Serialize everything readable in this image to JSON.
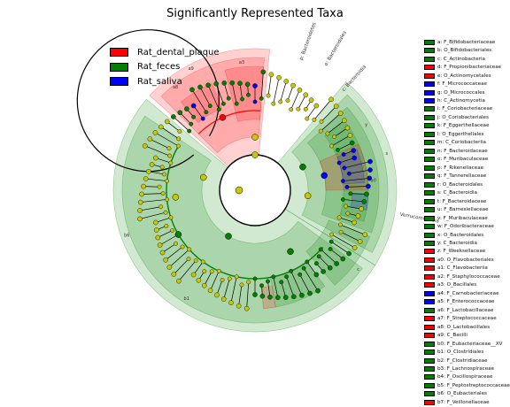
{
  "chart_data": {
    "type": "cladogram",
    "title": "Significantly Represented Taxa",
    "classes": [
      {
        "name": "Rat_dental_plaque",
        "color": "#ff0000"
      },
      {
        "name": "Rat_feces",
        "color": "#008000"
      },
      {
        "name": "Rat_saliva",
        "color": "#0000ff"
      }
    ],
    "sectors": [
      {
        "label": "p: Bacteroidetes",
        "color": "#008000"
      },
      {
        "label": "c: Bacteroidia",
        "color": "#008000"
      },
      {
        "label": "o: Bacteroidales",
        "color": "#008000"
      },
      {
        "label": "Verrucomicrobia",
        "color": "#008000"
      }
    ],
    "taxa": [
      {
        "key": "a",
        "name": "F_Bifidobacteriaceae",
        "color": "#008000"
      },
      {
        "key": "b",
        "name": "O_Bifidobacteriales",
        "color": "#008000"
      },
      {
        "key": "c",
        "name": "C_Actinobacteria",
        "color": "#008000"
      },
      {
        "key": "d",
        "name": "F_Propionibacteriaceae",
        "color": "#ff0000"
      },
      {
        "key": "e",
        "name": "O_Actinomycetales",
        "color": "#ff0000"
      },
      {
        "key": "f",
        "name": "F_Micrococcaceae",
        "color": "#0000ff"
      },
      {
        "key": "g",
        "name": "O_Micrococcales",
        "color": "#0000ff"
      },
      {
        "key": "h",
        "name": "C_Actinomycetia",
        "color": "#0000ff"
      },
      {
        "key": "i",
        "name": "F_Coriobacteriaceae",
        "color": "#008000"
      },
      {
        "key": "j",
        "name": "O_Coriobacteriales",
        "color": "#008000"
      },
      {
        "key": "k",
        "name": "F_Eggerthellaceae",
        "color": "#008000"
      },
      {
        "key": "l",
        "name": "O_Eggerthellales",
        "color": "#008000"
      },
      {
        "key": "m",
        "name": "C_Coriobacteriia",
        "color": "#008000"
      },
      {
        "key": "n",
        "name": "F_Bacteroidaceae",
        "color": "#008000"
      },
      {
        "key": "o",
        "name": "F_Muribaculaceae",
        "color": "#008000"
      },
      {
        "key": "p",
        "name": "F_Rikenellaceae",
        "color": "#008000"
      },
      {
        "key": "q",
        "name": "F_Tannerellaceae",
        "color": "#008000"
      },
      {
        "key": "r",
        "name": "O_Bacteroidales",
        "color": "#008000"
      },
      {
        "key": "s",
        "name": "C_Bacteroidia",
        "color": "#008000"
      },
      {
        "key": "t",
        "name": "F_Bacteroidaceae",
        "color": "#008000"
      },
      {
        "key": "u",
        "name": "F_Barnesiellaceae",
        "color": "#008000"
      },
      {
        "key": "v",
        "name": "F_Muribaculaceae",
        "color": "#008000"
      },
      {
        "key": "w",
        "name": "F_Odoribacteraceae",
        "color": "#008000"
      },
      {
        "key": "x",
        "name": "O_Bacteroidales",
        "color": "#008000"
      },
      {
        "key": "y",
        "name": "C_Bacteroidia",
        "color": "#008000"
      },
      {
        "key": "z",
        "name": "F_Weeksellaceae",
        "color": "#ff0000"
      },
      {
        "key": "a0",
        "name": "O_Flavobacteriales",
        "color": "#ff0000"
      },
      {
        "key": "a1",
        "name": "C_Flavobacteriia",
        "color": "#ff0000"
      },
      {
        "key": "a2",
        "name": "F_Staphylococcaceae",
        "color": "#ff0000"
      },
      {
        "key": "a3",
        "name": "O_Bacillales",
        "color": "#ff0000"
      },
      {
        "key": "a4",
        "name": "F_Carnobacteriaceae",
        "color": "#0000ff"
      },
      {
        "key": "a5",
        "name": "F_Enterococcaceae",
        "color": "#0000ff"
      },
      {
        "key": "a6",
        "name": "F_Lactobacillaceae",
        "color": "#008000"
      },
      {
        "key": "a7",
        "name": "F_Streptococcaceae",
        "color": "#ff0000"
      },
      {
        "key": "a8",
        "name": "O_Lactobacillales",
        "color": "#ff0000"
      },
      {
        "key": "a9",
        "name": "C_Bacilli",
        "color": "#ff0000"
      },
      {
        "key": "b0",
        "name": "F_Eubacteriaceae__XV",
        "color": "#008000"
      },
      {
        "key": "b1",
        "name": "O_Clostridiales",
        "color": "#008000"
      },
      {
        "key": "b2",
        "name": "F_Clostridiaceae",
        "color": "#008000"
      },
      {
        "key": "b3",
        "name": "F_Lachnospiraceae",
        "color": "#008000"
      },
      {
        "key": "b4",
        "name": "F_Oscillospiraceae",
        "color": "#008000"
      },
      {
        "key": "b5",
        "name": "F_Peptostreptococcaceae",
        "color": "#008000"
      },
      {
        "key": "b6",
        "name": "O_Eubacteriales",
        "color": "#008000"
      },
      {
        "key": "b7",
        "name": "F_Veillonellaceae",
        "color": "#ff0000"
      }
    ]
  }
}
